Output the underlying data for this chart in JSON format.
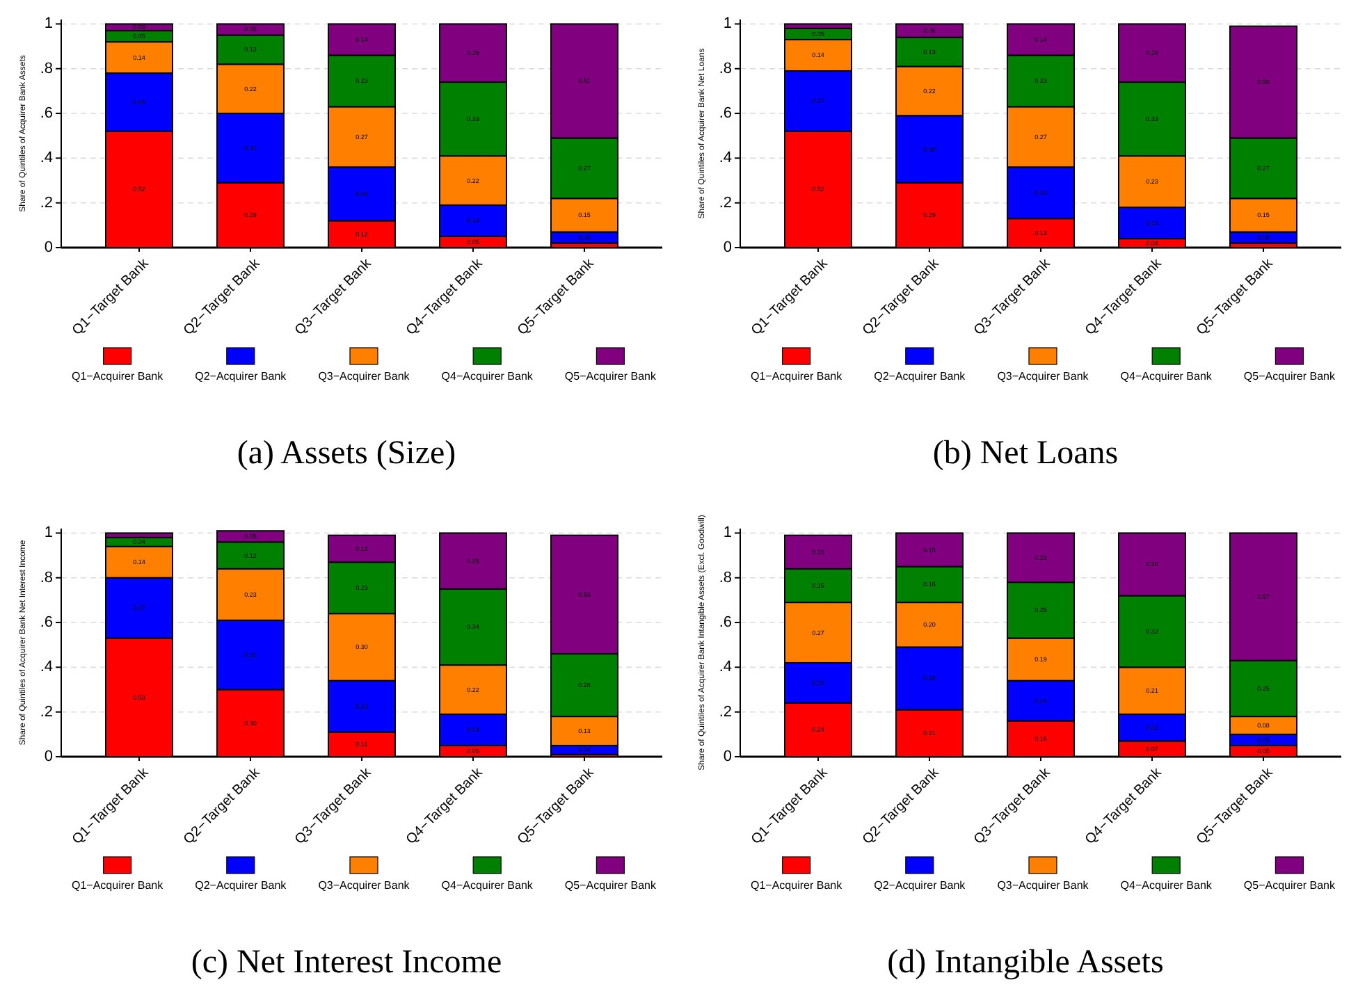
{
  "chart_data": [
    {
      "type": "bar",
      "stacked": true,
      "title": "(a) Assets (Size)",
      "ylabel": "Share of Quintiles of Acquirer Bank Assets",
      "categories": [
        "Q1−Target Bank",
        "Q2−Target Bank",
        "Q3−Target Bank",
        "Q4−Target Bank",
        "Q5−Target Bank"
      ],
      "ylim": [
        0,
        1.02
      ],
      "yticks": [
        {
          "value": 0,
          "label": "0"
        },
        {
          "value": 0.2,
          "label": ".2"
        },
        {
          "value": 0.4,
          "label": ".4"
        },
        {
          "value": 0.6,
          "label": ".6"
        },
        {
          "value": 0.8,
          "label": ".8"
        },
        {
          "value": 1,
          "label": "1"
        }
      ],
      "grid": "y",
      "legend": "bottom",
      "series": [
        {
          "name": "Q1−Acquirer Bank",
          "color": "#ff0000",
          "values": [
            0.52,
            0.29,
            0.12,
            0.05,
            0.02
          ],
          "value_labels": [
            "0.52",
            "0.29",
            "0.12",
            "0.05",
            null
          ]
        },
        {
          "name": "Q2−Acquirer Bank",
          "color": "#0000ff",
          "values": [
            0.26,
            0.31,
            0.24,
            0.14,
            0.05
          ],
          "value_labels": [
            "0.26",
            "0.31",
            "0.24",
            "0.14",
            "0.05"
          ]
        },
        {
          "name": "Q3−Acquirer Bank",
          "color": "#ff7f00",
          "values": [
            0.14,
            0.22,
            0.27,
            0.22,
            0.15
          ],
          "value_labels": [
            "0.14",
            "0.22",
            "0.27",
            "0.22",
            "0.15"
          ]
        },
        {
          "name": "Q4−Acquirer Bank",
          "color": "#008000",
          "values": [
            0.05,
            0.13,
            0.23,
            0.33,
            0.27
          ],
          "value_labels": [
            "0.05",
            "0.13",
            "0.23",
            "0.33",
            "0.27"
          ]
        },
        {
          "name": "Q5−Acquirer Bank",
          "color": "#800080",
          "values": [
            0.03,
            0.05,
            0.14,
            0.26,
            0.51
          ],
          "value_labels": [
            "0.03",
            "0.05",
            "0.14",
            "0.26",
            "0.51"
          ]
        }
      ]
    },
    {
      "type": "bar",
      "stacked": true,
      "title": "(b) Net Loans",
      "ylabel": "Share of Quintiles of Acquirer Bank Net Loans",
      "categories": [
        "Q1−Target Bank",
        "Q2−Target Bank",
        "Q3−Target Bank",
        "Q4−Target Bank",
        "Q5−Target Bank"
      ],
      "ylim": [
        0,
        1.02
      ],
      "yticks": [
        {
          "value": 0,
          "label": "0"
        },
        {
          "value": 0.2,
          "label": ".2"
        },
        {
          "value": 0.4,
          "label": ".4"
        },
        {
          "value": 0.6,
          "label": ".6"
        },
        {
          "value": 0.8,
          "label": ".8"
        },
        {
          "value": 1,
          "label": "1"
        }
      ],
      "grid": "y",
      "legend": "bottom",
      "series": [
        {
          "name": "Q1−Acquirer Bank",
          "color": "#ff0000",
          "values": [
            0.52,
            0.29,
            0.13,
            0.04,
            0.02
          ],
          "value_labels": [
            "0.52",
            "0.29",
            "0.13",
            "0.04",
            null
          ]
        },
        {
          "name": "Q2−Acquirer Bank",
          "color": "#0000ff",
          "values": [
            0.27,
            0.3,
            0.23,
            0.14,
            0.05
          ],
          "value_labels": [
            "0.27",
            "0.30",
            "0.23",
            "0.14",
            "0.05"
          ]
        },
        {
          "name": "Q3−Acquirer Bank",
          "color": "#ff7f00",
          "values": [
            0.14,
            0.22,
            0.27,
            0.23,
            0.15
          ],
          "value_labels": [
            "0.14",
            "0.22",
            "0.27",
            "0.23",
            "0.15"
          ]
        },
        {
          "name": "Q4−Acquirer Bank",
          "color": "#008000",
          "values": [
            0.05,
            0.13,
            0.23,
            0.33,
            0.27
          ],
          "value_labels": [
            "0.05",
            "0.13",
            "0.23",
            "0.33",
            "0.27"
          ]
        },
        {
          "name": "Q5−Acquirer Bank",
          "color": "#800080",
          "values": [
            0.02,
            0.06,
            0.14,
            0.26,
            0.5
          ],
          "value_labels": [
            null,
            "0.06",
            "0.14",
            "0.26",
            "0.50"
          ]
        }
      ]
    },
    {
      "type": "bar",
      "stacked": true,
      "title": "(c) Net Interest Income",
      "ylabel": "Share of Quintiles of Acquirer Bank Net Interest Income",
      "categories": [
        "Q1−Target Bank",
        "Q2−Target Bank",
        "Q3−Target Bank",
        "Q4−Target Bank",
        "Q5−Target Bank"
      ],
      "ylim": [
        0,
        1.02
      ],
      "yticks": [
        {
          "value": 0,
          "label": "0"
        },
        {
          "value": 0.2,
          "label": ".2"
        },
        {
          "value": 0.4,
          "label": ".4"
        },
        {
          "value": 0.6,
          "label": ".6"
        },
        {
          "value": 0.8,
          "label": ".8"
        },
        {
          "value": 1,
          "label": "1"
        }
      ],
      "grid": "y",
      "legend": "bottom",
      "series": [
        {
          "name": "Q1−Acquirer Bank",
          "color": "#ff0000",
          "values": [
            0.53,
            0.3,
            0.11,
            0.05,
            0.01
          ],
          "value_labels": [
            "0.53",
            "0.30",
            "0.11",
            "0.05",
            null
          ]
        },
        {
          "name": "Q2−Acquirer Bank",
          "color": "#0000ff",
          "values": [
            0.27,
            0.31,
            0.23,
            0.14,
            0.04
          ],
          "value_labels": [
            "0.27",
            "0.31",
            "0.23",
            "0.14",
            "0.04"
          ]
        },
        {
          "name": "Q3−Acquirer Bank",
          "color": "#ff7f00",
          "values": [
            0.14,
            0.23,
            0.3,
            0.22,
            0.13
          ],
          "value_labels": [
            "0.14",
            "0.23",
            "0.30",
            "0.22",
            "0.13"
          ]
        },
        {
          "name": "Q4−Acquirer Bank",
          "color": "#008000",
          "values": [
            0.04,
            0.12,
            0.23,
            0.34,
            0.28
          ],
          "value_labels": [
            "0.04",
            "0.12",
            "0.23",
            "0.34",
            "0.28"
          ]
        },
        {
          "name": "Q5−Acquirer Bank",
          "color": "#800080",
          "values": [
            0.02,
            0.05,
            0.12,
            0.25,
            0.53
          ],
          "value_labels": [
            null,
            "0.05",
            "0.12",
            "0.25",
            "0.53"
          ]
        }
      ]
    },
    {
      "type": "bar",
      "stacked": true,
      "title": "(d) Intangible Assets",
      "ylabel": "Share of Quintiles of Acquirer Bank Intangible Assets (Excl. Goodwill)",
      "categories": [
        "Q1−Target Bank",
        "Q2−Target Bank",
        "Q3−Target Bank",
        "Q4−Target Bank",
        "Q5−Target Bank"
      ],
      "ylim": [
        0,
        1.02
      ],
      "yticks": [
        {
          "value": 0,
          "label": "0"
        },
        {
          "value": 0.2,
          "label": ".2"
        },
        {
          "value": 0.4,
          "label": ".4"
        },
        {
          "value": 0.6,
          "label": ".6"
        },
        {
          "value": 0.8,
          "label": ".8"
        },
        {
          "value": 1,
          "label": "1"
        }
      ],
      "grid": "y",
      "legend": "bottom",
      "series": [
        {
          "name": "Q1−Acquirer Bank",
          "color": "#ff0000",
          "values": [
            0.24,
            0.21,
            0.16,
            0.07,
            0.05
          ],
          "value_labels": [
            "0.24",
            "0.21",
            "0.16",
            "0.07",
            "0.05"
          ]
        },
        {
          "name": "Q2−Acquirer Bank",
          "color": "#0000ff",
          "values": [
            0.18,
            0.28,
            0.18,
            0.12,
            0.05
          ],
          "value_labels": [
            "0.18",
            "0.28",
            "0.18",
            "0.12",
            "0.05"
          ]
        },
        {
          "name": "Q3−Acquirer Bank",
          "color": "#ff7f00",
          "values": [
            0.27,
            0.2,
            0.19,
            0.21,
            0.08
          ],
          "value_labels": [
            "0.27",
            "0.20",
            "0.19",
            "0.21",
            "0.08"
          ]
        },
        {
          "name": "Q4−Acquirer Bank",
          "color": "#008000",
          "values": [
            0.15,
            0.16,
            0.25,
            0.32,
            0.25
          ],
          "value_labels": [
            "0.15",
            "0.16",
            "0.25",
            "0.32",
            "0.25"
          ]
        },
        {
          "name": "Q5−Acquirer Bank",
          "color": "#800080",
          "values": [
            0.15,
            0.15,
            0.22,
            0.28,
            0.57
          ],
          "value_labels": [
            "0.15",
            "0.15",
            "0.22",
            "0.28",
            "0.57"
          ]
        }
      ]
    }
  ]
}
